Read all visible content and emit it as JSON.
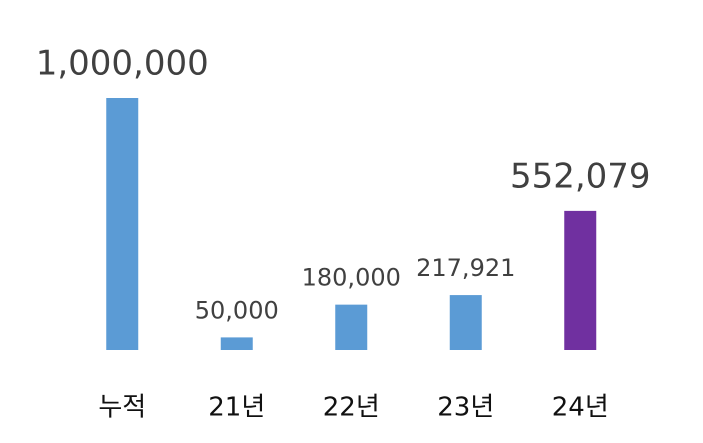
{
  "chart_data": {
    "type": "bar",
    "categories": [
      "누적",
      "21년",
      "22년",
      "23년",
      "24년"
    ],
    "values": [
      1000000,
      50000,
      180000,
      217921,
      552079
    ],
    "value_labels": [
      "1,000,000",
      "50,000",
      "180,000",
      "217,921",
      "552,079"
    ],
    "colors": [
      "#5b9bd5",
      "#5b9bd5",
      "#5b9bd5",
      "#5b9bd5",
      "#7030a0"
    ]
  }
}
